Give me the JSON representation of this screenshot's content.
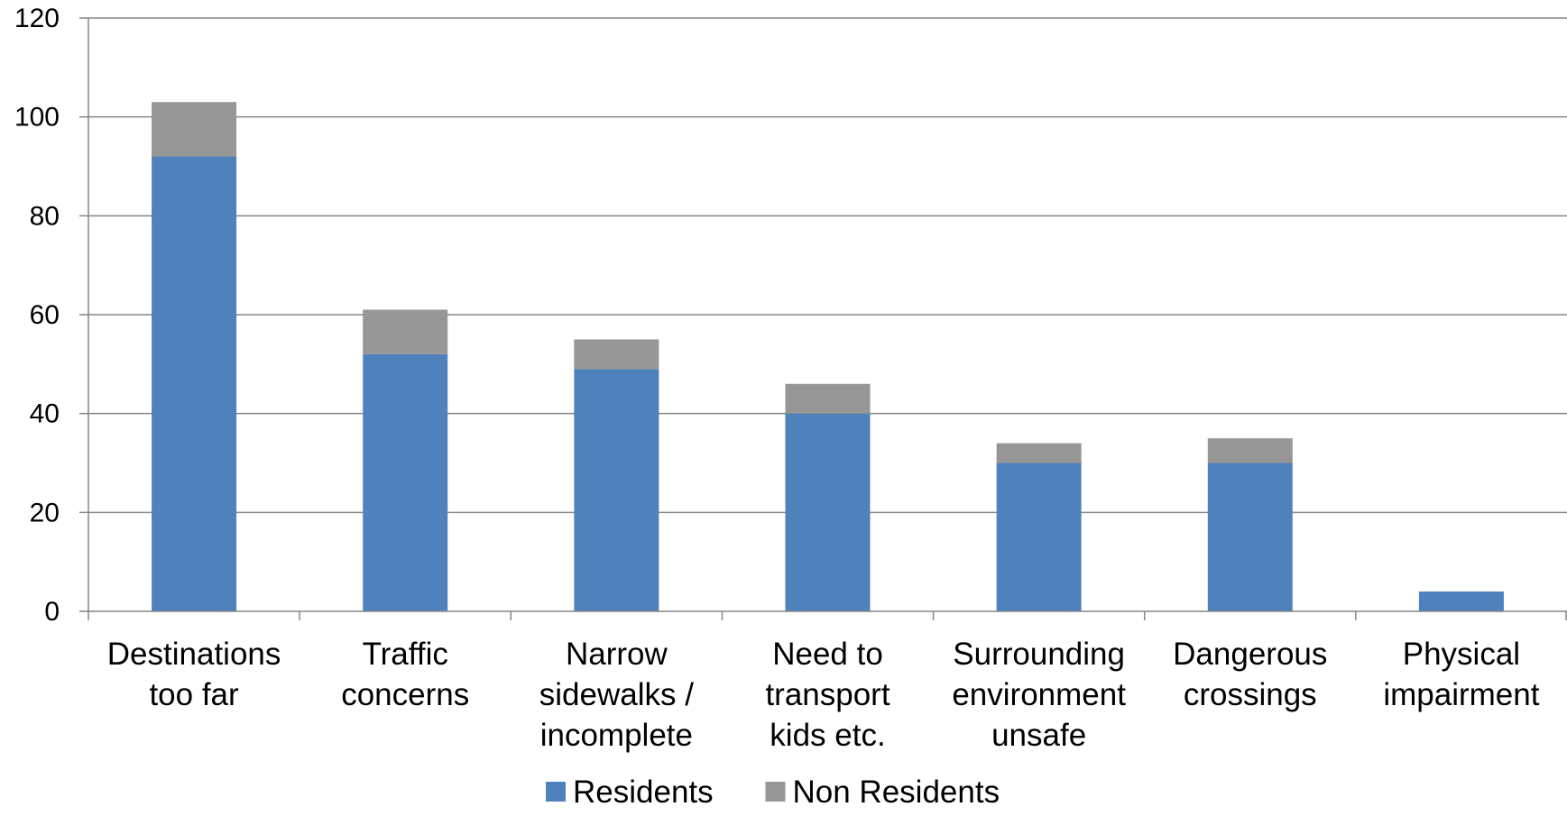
{
  "chart_data": {
    "type": "bar",
    "stacked": true,
    "categories": [
      [
        "Destinations",
        "too far"
      ],
      [
        "Traffic",
        "concerns"
      ],
      [
        "Narrow",
        "sidewalks /",
        "incomplete"
      ],
      [
        "Need to",
        "transport",
        "kids etc."
      ],
      [
        "Surrounding",
        "environment",
        "unsafe"
      ],
      [
        "Dangerous",
        "crossings"
      ],
      [
        "Physical",
        "impairment"
      ]
    ],
    "series": [
      {
        "name": "Residents",
        "color": "#4f81bd",
        "values": [
          92,
          52,
          49,
          40,
          30,
          30,
          4
        ]
      },
      {
        "name": "Non Residents",
        "color": "#969696",
        "values": [
          11,
          9,
          6,
          6,
          4,
          5,
          0
        ]
      }
    ],
    "ylim": [
      0,
      120
    ],
    "yticks": [
      0,
      20,
      40,
      60,
      80,
      100,
      120
    ],
    "grid": true,
    "legend_position": "bottom"
  }
}
